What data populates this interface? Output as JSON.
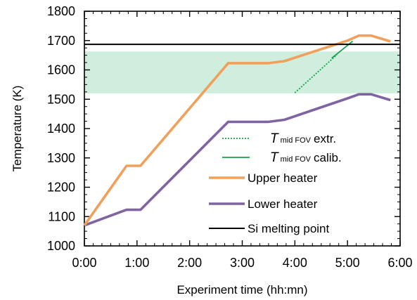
{
  "chart_data": {
    "type": "line",
    "xlabel": "Experiment time (hh:mn)",
    "ylabel": "Temperature (K)",
    "xlim": [
      0,
      360
    ],
    "ylim": [
      1000,
      1800
    ],
    "x_ticks": [
      {
        "value": 0,
        "label": "0:00"
      },
      {
        "value": 60,
        "label": "1:00"
      },
      {
        "value": 120,
        "label": "2:00"
      },
      {
        "value": 180,
        "label": "3:00"
      },
      {
        "value": 240,
        "label": "4:00"
      },
      {
        "value": 300,
        "label": "5:00"
      },
      {
        "value": 360,
        "label": "6:00"
      }
    ],
    "y_ticks": [
      1000,
      1100,
      1200,
      1300,
      1400,
      1500,
      1600,
      1700,
      1800
    ],
    "grid": false,
    "band": {
      "y_from": 1520,
      "y_to": 1663,
      "color": "#cfeedd"
    },
    "reference_line": {
      "y": 1687,
      "name": "Si melting point",
      "color": "#000000"
    },
    "series": [
      {
        "name": "Upper heater",
        "color": "#f0a05a",
        "style": "solid",
        "x": [
          0,
          48,
          64,
          164,
          210,
          228,
          300,
          313,
          327,
          349
        ],
        "y": [
          1070,
          1273,
          1273,
          1623,
          1623,
          1630,
          1700,
          1717,
          1717,
          1697
        ]
      },
      {
        "name": "Lower heater",
        "color": "#8064a2",
        "style": "solid",
        "x": [
          0,
          48,
          64,
          164,
          210,
          228,
          300,
          313,
          327,
          349
        ],
        "y": [
          1070,
          1123,
          1123,
          1423,
          1423,
          1430,
          1503,
          1517,
          1517,
          1497
        ]
      },
      {
        "name_prefix": "T",
        "name_sub": "mid FOV",
        "name_suffix": "extr.",
        "color": "#17a34a",
        "style": "dotted",
        "x": [
          240,
          288
        ],
        "y": [
          1522,
          1652
        ]
      },
      {
        "name_prefix": "T",
        "name_sub": "mid FOV",
        "name_suffix": "calib.",
        "color": "#17a34a",
        "style": "solid",
        "x": [
          282,
          306
        ],
        "y": [
          1640,
          1698
        ]
      }
    ],
    "legend": {
      "placement": "bottom-right",
      "order": [
        2,
        3,
        0,
        1,
        "reference"
      ]
    }
  }
}
